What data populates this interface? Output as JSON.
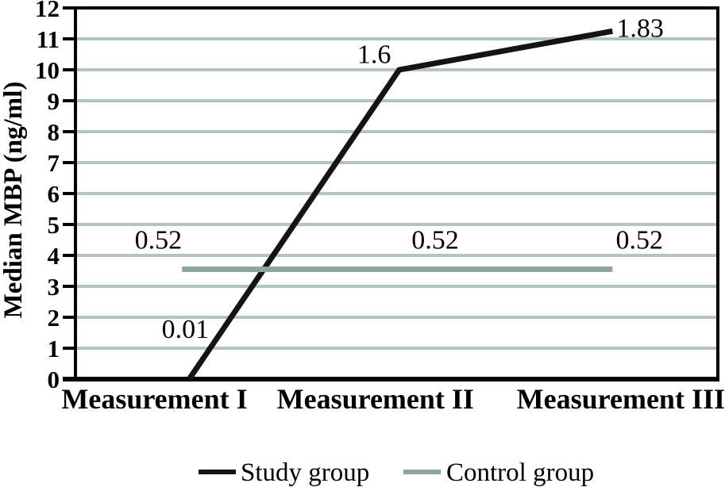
{
  "figure": {
    "y_axis_title": "Median MBP (ng/ml)"
  },
  "colors": {
    "study": "#141414",
    "control": "#8fa5a3",
    "gridline": "#b4c4c2",
    "frame": "#000000",
    "background": "#ffffff"
  },
  "legend": {
    "position": "bottom center",
    "items": [
      {
        "id": "study-group",
        "label": "Study group",
        "color": "#141414"
      },
      {
        "id": "control-group",
        "label": "Control group",
        "color": "#8fa5a3"
      }
    ]
  },
  "chart_data": {
    "type": "line",
    "title": "",
    "xlabel": "",
    "ylabel": "Median MBP (ng/ml)",
    "categories": [
      "Measurement I",
      "Measurement II",
      "Measurement III"
    ],
    "ylim": [
      0,
      12
    ],
    "yticks": [
      0,
      1,
      2,
      3,
      4,
      5,
      6,
      7,
      8,
      9,
      10,
      11,
      12
    ],
    "grid": "horizontal gray gridlines at each y tick, plot framed top and right",
    "legend_position": "bottom",
    "series": [
      {
        "name": "Study group",
        "values": [
          0.01,
          1.6,
          1.83
        ],
        "data_labels": [
          "0.01",
          "1.6",
          "1.83"
        ],
        "color": "#141414",
        "plot": {
          "fx": [
            0.177,
            0.504,
            0.836
          ],
          "y": [
            0.0,
            10.0,
            11.25
          ]
        }
      },
      {
        "name": "Control group",
        "values": [
          0.52,
          0.52,
          0.52
        ],
        "data_labels": [
          "0.52",
          "0.52",
          "0.52"
        ],
        "color": "#8fa5a3",
        "plot": {
          "fx": [
            0.166,
            0.501,
            0.836
          ],
          "y": [
            3.55,
            3.55,
            3.55
          ]
        }
      }
    ],
    "annotations": [
      {
        "text": "0.52",
        "fx": 0.129,
        "y": 4.5
      },
      {
        "text": "0.01",
        "fx": 0.171,
        "y": 1.62
      },
      {
        "text": "1.6",
        "fx": 0.465,
        "y": 10.5
      },
      {
        "text": "0.52",
        "fx": 0.56,
        "y": 4.5
      },
      {
        "text": "0.52",
        "fx": 0.878,
        "y": 4.5
      },
      {
        "text": "1.83",
        "fx": 0.879,
        "y": 11.35
      }
    ],
    "category_fx": [
      0.123,
      0.467,
      0.849
    ],
    "note": "Printed data labels show median values; plot.y keeps the drawn line heights on the 0-12 axis as in the figure."
  }
}
